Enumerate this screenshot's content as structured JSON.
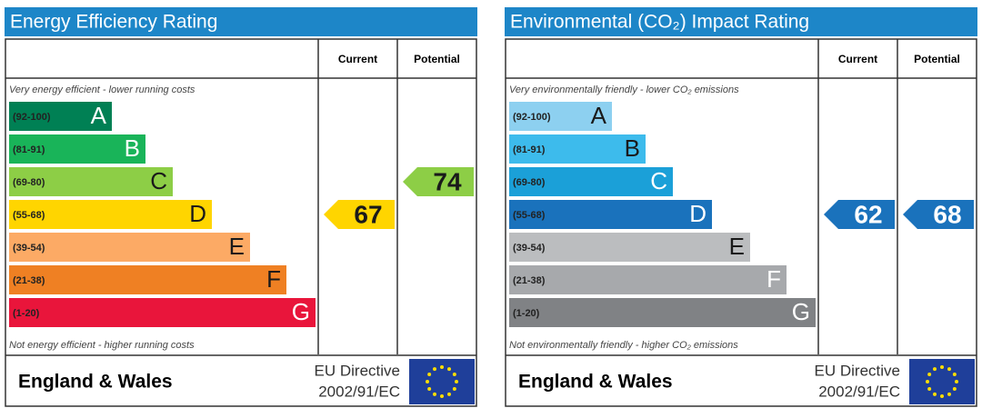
{
  "panels": [
    {
      "title": "Energy Efficiency Rating",
      "header": {
        "current": "Current",
        "potential": "Potential"
      },
      "top_note": "Very energy efficient - lower running costs",
      "bottom_note": "Not energy efficient - higher running costs",
      "bands": [
        {
          "range": "(92-100)",
          "letter": "A",
          "color": "#008054",
          "letter_color": "#ffffff"
        },
        {
          "range": "(81-91)",
          "letter": "B",
          "color": "#19b459",
          "letter_color": "#ffffff"
        },
        {
          "range": "(69-80)",
          "letter": "C",
          "color": "#8dce46",
          "letter_color": "#1a1a1a"
        },
        {
          "range": "(55-68)",
          "letter": "D",
          "color": "#ffd500",
          "letter_color": "#1a1a1a"
        },
        {
          "range": "(39-54)",
          "letter": "E",
          "color": "#fcaa65",
          "letter_color": "#1a1a1a"
        },
        {
          "range": "(21-38)",
          "letter": "F",
          "color": "#ef8023",
          "letter_color": "#1a1a1a"
        },
        {
          "range": "(1-20)",
          "letter": "G",
          "color": "#e9153b",
          "letter_color": "#ffffff"
        }
      ],
      "current": 67,
      "potential": 74,
      "footer": {
        "region": "England & Wales",
        "directive": [
          "EU Directive",
          "2002/91/EC"
        ]
      }
    },
    {
      "title": "Environmental (CO₂) Impact Rating",
      "header": {
        "current": "Current",
        "potential": "Potential"
      },
      "top_note": "Very environmentally friendly - lower CO₂ emissions",
      "bottom_note": "Not environmentally friendly - higher CO₂ emissions",
      "bands": [
        {
          "range": "(92-100)",
          "letter": "A",
          "color": "#8dd0f0",
          "letter_color": "#1a1a1a"
        },
        {
          "range": "(81-91)",
          "letter": "B",
          "color": "#3dbbec",
          "letter_color": "#1a1a1a"
        },
        {
          "range": "(69-80)",
          "letter": "C",
          "color": "#1ba0d8",
          "letter_color": "#ffffff"
        },
        {
          "range": "(55-68)",
          "letter": "D",
          "color": "#1a72bc",
          "letter_color": "#ffffff"
        },
        {
          "range": "(39-54)",
          "letter": "E",
          "color": "#bbbdbf",
          "letter_color": "#1a1a1a"
        },
        {
          "range": "(21-38)",
          "letter": "F",
          "color": "#a7a9ac",
          "letter_color": "#ffffff"
        },
        {
          "range": "(1-20)",
          "letter": "G",
          "color": "#808285",
          "letter_color": "#ffffff"
        }
      ],
      "current": 62,
      "potential": 68,
      "footer": {
        "region": "England & Wales",
        "directive": [
          "EU Directive",
          "2002/91/EC"
        ]
      }
    }
  ]
}
